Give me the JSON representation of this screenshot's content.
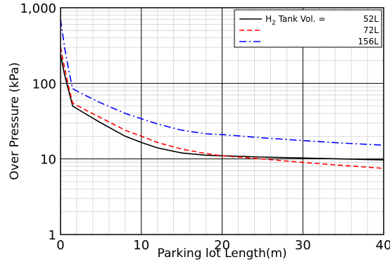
{
  "chart_data": {
    "type": "line",
    "xlabel": "Parking lot Length(m)",
    "ylabel": "Over Pressure (kPa)",
    "xlim": [
      0,
      40
    ],
    "ylim": [
      1,
      1000
    ],
    "y_scale": "log",
    "grid": true,
    "legend_position": "top-right",
    "x_ticks": [
      0,
      10,
      20,
      30,
      40
    ],
    "x_tick_labels": [
      "0",
      "10",
      "20",
      "30",
      "40"
    ],
    "y_ticks": [
      1,
      10,
      100,
      1000
    ],
    "y_tick_labels": [
      "1",
      "10",
      "100",
      "1,000"
    ],
    "legend": {
      "title_main": "H",
      "title_sub": "2",
      "title_rest": " Tank Vol. =",
      "entries": [
        "52L",
        "72L",
        "156L"
      ]
    },
    "series": [
      {
        "name": "52L",
        "color": "#000000",
        "dash": "solid",
        "x": [
          0,
          0.5,
          1,
          1.5,
          3,
          5,
          8,
          10,
          12,
          15,
          18,
          20,
          25,
          30,
          35,
          40
        ],
        "y": [
          240,
          130,
          80,
          50,
          40,
          30,
          20,
          16.5,
          14,
          12,
          11.2,
          11,
          10.6,
          10.3,
          10,
          9.7
        ]
      },
      {
        "name": "72L",
        "color": "#ff0000",
        "dash": "dashed",
        "x": [
          0,
          0.5,
          1,
          1.5,
          3,
          5,
          8,
          10,
          12,
          15,
          18,
          20,
          25,
          30,
          35,
          40
        ],
        "y": [
          300,
          160,
          90,
          55,
          45,
          35,
          24,
          20,
          16.5,
          13.5,
          11.8,
          11,
          10,
          9,
          8.2,
          7.5
        ]
      },
      {
        "name": "156L",
        "color": "#0000ff",
        "dash": "dashdot",
        "x": [
          0,
          0.5,
          1,
          1.5,
          3,
          5,
          8,
          10,
          12,
          15,
          18,
          20,
          25,
          30,
          35,
          40
        ],
        "y": [
          700,
          300,
          150,
          85,
          70,
          55,
          40,
          34,
          29,
          24,
          21.5,
          21,
          19,
          17.5,
          16.2,
          15.2
        ]
      }
    ]
  }
}
